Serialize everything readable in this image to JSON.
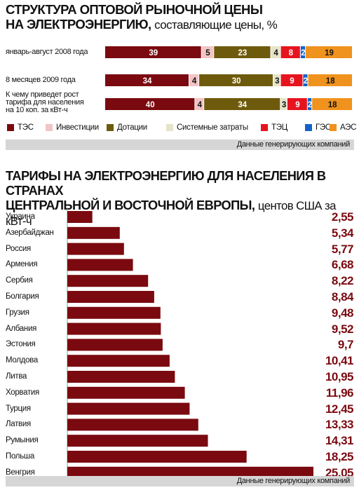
{
  "colors": {
    "bar": "#7a0a10",
    "band": "#d6d6d6"
  },
  "chart_data": [
    {
      "type": "bar",
      "stacked": true,
      "orientation": "horizontal",
      "title": "СТРУКТУРА ОПТОВОЙ РЫНОЧНОЙ ЦЕНЫ НА ЭЛЕКТРОЭНЕРГИЮ, составляющие цены, %",
      "title_line1": "СТРУКТУРА ОПТОВОЙ РЫНОЧНОЙ ЦЕНЫ",
      "title_line2_main": "НА ЭЛЕКТРОЭНЕРГИЮ,",
      "title_line2_sub": "составляющие цены, %",
      "categories": [
        "январь-август 2008 года",
        "8 месяцев 2009 года",
        "К чему приведет рост тарифа для населения на 10 коп. за кВт-ч"
      ],
      "category_lines": [
        [
          "январь-август 2008 года"
        ],
        [
          "8 месяцев 2009 года"
        ],
        [
          "К чему приведет рост",
          "тарифа для населения",
          "на 10 коп. за кВт-ч"
        ]
      ],
      "series": [
        {
          "name": "ТЭС",
          "color": "#7a0a10",
          "text_color": "#ffffff",
          "values": [
            39,
            34,
            40
          ]
        },
        {
          "name": "Инвестиции",
          "color": "#f2c4c4",
          "text_color": "#111111",
          "values": [
            5,
            4,
            4
          ]
        },
        {
          "name": "Дотации",
          "color": "#6e5a0c",
          "text_color": "#ffffff",
          "values": [
            23,
            30,
            34
          ]
        },
        {
          "name": "Системные затраты",
          "color": "#e6e4c8",
          "text_color": "#111111",
          "values": [
            4,
            3,
            3
          ]
        },
        {
          "name": "ТЭЦ",
          "color": "#e6141e",
          "text_color": "#ffffff",
          "values": [
            8,
            9,
            9
          ]
        },
        {
          "name": "ГЭС",
          "color": "#1464c8",
          "text_color": "#ffffff",
          "values": [
            2,
            2,
            2
          ]
        },
        {
          "name": "АЭС",
          "color": "#f0921e",
          "text_color": "#111111",
          "values": [
            19,
            18,
            18
          ]
        }
      ],
      "source": "Данные генерирующих компаний"
    },
    {
      "type": "bar",
      "orientation": "horizontal",
      "title": "ТАРИФЫ НА ЭЛЕКТРОЭНЕРГИЮ ДЛЯ НАСЕЛЕНИЯ В СТРАНАХ ЦЕНТРАЛЬНОЙ И ВОСТОЧНОЙ ЕВРОПЫ, центов США за кВт-ч",
      "title_line1": "ТАРИФЫ НА ЭЛЕКТРОЭНЕРГИЮ ДЛЯ НАСЕЛЕНИЯ В СТРАНАХ",
      "title_line2_main": "ЦЕНТРАЛЬНОЙ И ВОСТОЧНОЙ ЕВРОПЫ,",
      "title_line2_sub": "центов США за кВт-ч",
      "categories": [
        "Украина",
        "Азербайджан",
        "Россия",
        "Армения",
        "Сербия",
        "Болгария",
        "Грузия",
        "Албания",
        "Эстония",
        "Молдова",
        "Литва",
        "Хорватия",
        "Турция",
        "Латвия",
        "Румыния",
        "Польша",
        "Венгрия"
      ],
      "values": [
        2.55,
        5.34,
        5.77,
        6.68,
        8.22,
        8.84,
        9.48,
        9.52,
        9.7,
        10.41,
        10.95,
        11.96,
        12.45,
        13.33,
        14.31,
        18.25,
        25.05
      ],
      "value_labels": [
        "2,55",
        "5,34",
        "5,77",
        "6,68",
        "8,22",
        "8,84",
        "9,48",
        "9,52",
        "9,7",
        "10,41",
        "10,95",
        "11,96",
        "12,45",
        "13,33",
        "14,31",
        "18,25",
        "25,05"
      ],
      "source": "Данные генерирующих компаний"
    }
  ]
}
